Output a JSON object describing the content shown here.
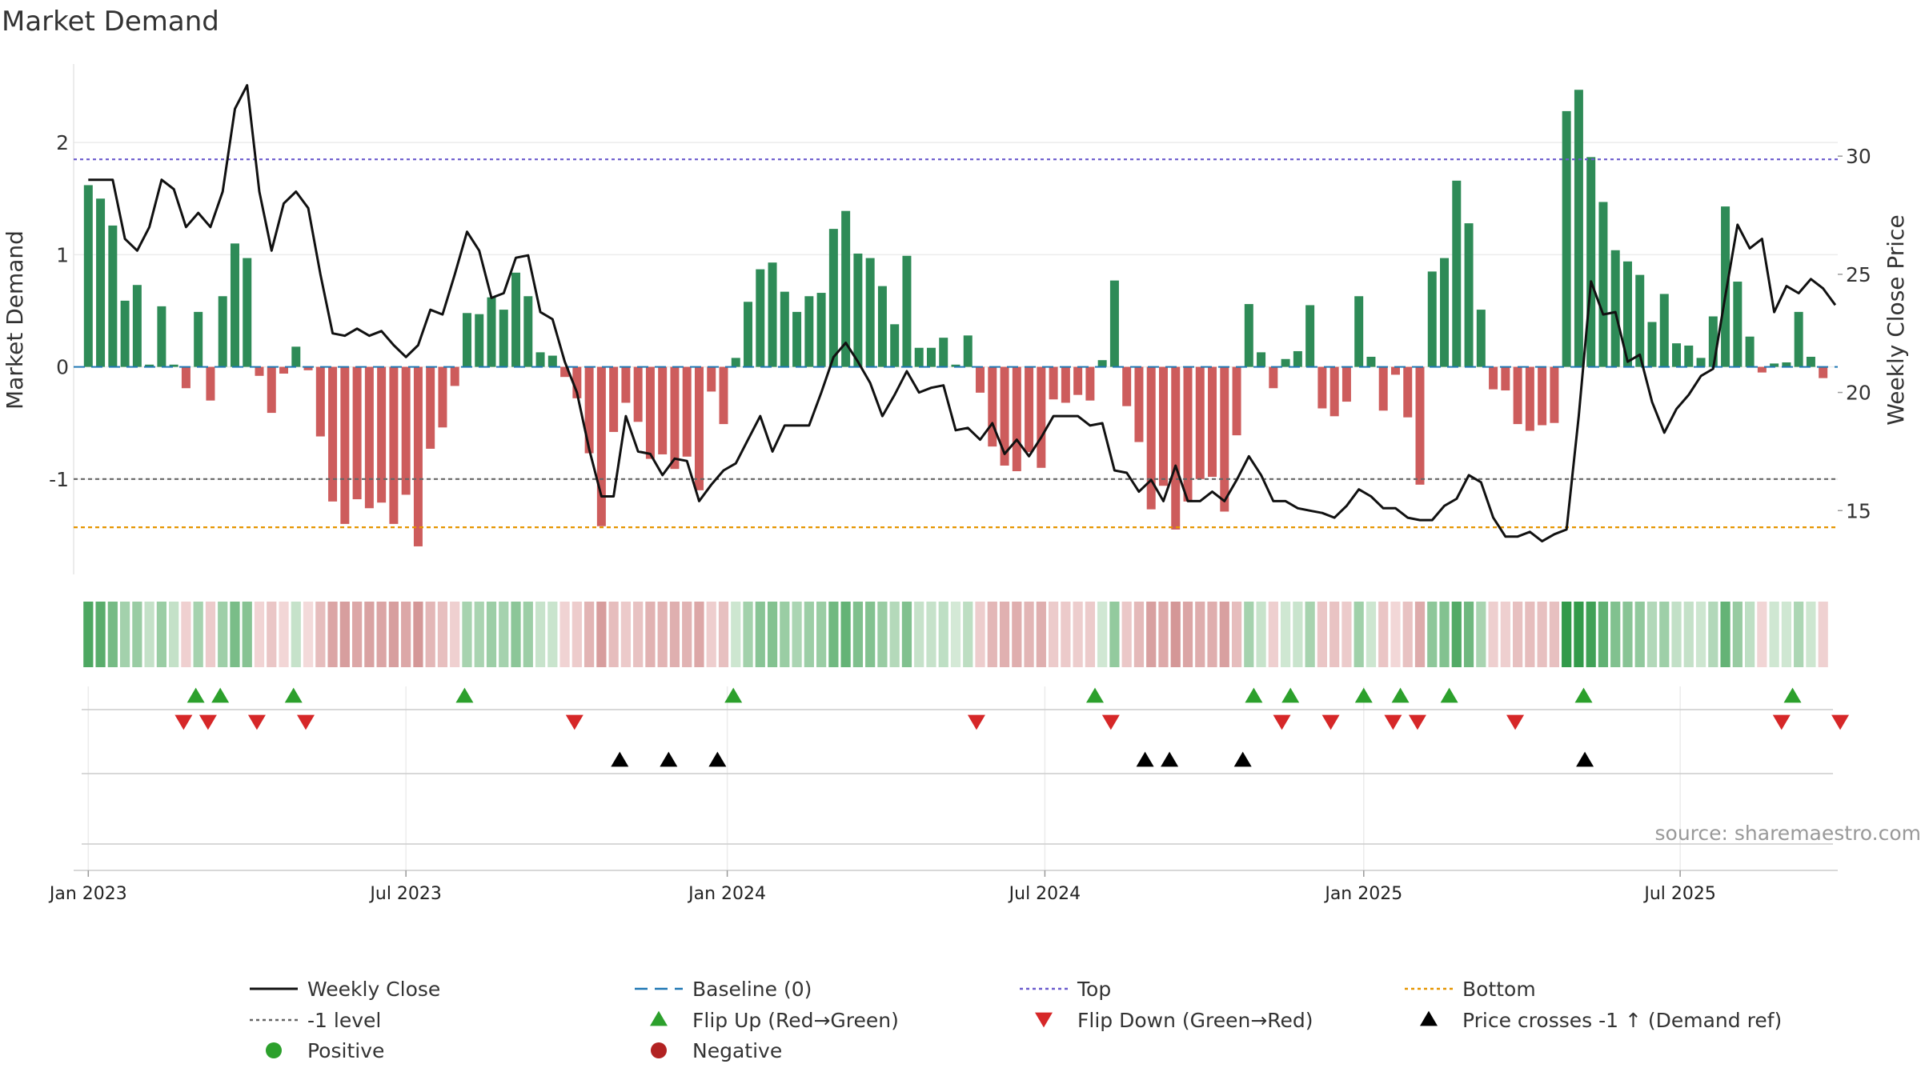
{
  "chart_data": {
    "type": "bar+line",
    "title": "Market Demand",
    "ylabel_left": "Market Demand",
    "ylabel_right": "Weekly Close Price",
    "source": "source: sharemaestro.com",
    "colors": {
      "positive": "#2e8b57",
      "negative": "#cd5c5c",
      "price": "#111111",
      "baseline": "#1f77b4",
      "top": "#6a5acd",
      "bottom": "#e69500",
      "neg1": "#666666",
      "flip_up": "#2ca02c",
      "flip_down": "#d62728",
      "cross": "#000000",
      "pos_dot": "#2ca02c",
      "neg_dot": "#b22222"
    },
    "x_start": "2023-01-02",
    "x_ticks": [
      {
        "label": "Jan 2023",
        "week": 0
      },
      {
        "label": "Jul 2023",
        "week": 26
      },
      {
        "label": "Jan 2024",
        "week": 52.3
      },
      {
        "label": "Jul 2024",
        "week": 78.3
      },
      {
        "label": "Jan 2025",
        "week": 104.4
      },
      {
        "label": "Jul 2025",
        "week": 130.3
      }
    ],
    "xlim_weeks": [
      -1.2,
      143.2
    ],
    "left_axis": {
      "ylim": [
        -1.85,
        2.7
      ],
      "ticks": [
        -1,
        0,
        1,
        2
      ]
    },
    "right_axis": {
      "ylim": [
        12.3,
        33.9
      ],
      "ticks": [
        15,
        20,
        25,
        30
      ]
    },
    "reference_lines": {
      "baseline": 0,
      "top": 1.85,
      "minus_one": -1,
      "bottom": -1.43
    },
    "demand": [
      1.62,
      1.5,
      1.26,
      0.59,
      0.73,
      0.02,
      0.54,
      0.02,
      -0.19,
      0.49,
      -0.3,
      0.63,
      1.1,
      0.97,
      -0.08,
      -0.41,
      -0.06,
      0.18,
      -0.03,
      -0.62,
      -1.2,
      -1.4,
      -1.18,
      -1.26,
      -1.21,
      -1.4,
      -1.14,
      -1.6,
      -0.73,
      -0.54,
      -0.17,
      0.48,
      0.47,
      0.62,
      0.51,
      0.84,
      0.63,
      0.13,
      0.1,
      -0.09,
      -0.28,
      -0.77,
      -1.42,
      -0.58,
      -0.32,
      -0.49,
      -0.82,
      -0.78,
      -0.91,
      -0.8,
      -1.1,
      -0.22,
      -0.51,
      0.08,
      0.58,
      0.87,
      0.93,
      0.67,
      0.49,
      0.63,
      0.66,
      1.23,
      1.39,
      1.01,
      0.97,
      0.72,
      0.38,
      0.99,
      0.17,
      0.17,
      0.26,
      0.02,
      0.28,
      -0.23,
      -0.71,
      -0.88,
      -0.93,
      -0.76,
      -0.9,
      -0.29,
      -0.32,
      -0.25,
      -0.3,
      0.06,
      0.77,
      -0.35,
      -0.67,
      -1.27,
      -1.06,
      -1.45,
      -1.2,
      -1.0,
      -0.98,
      -1.29,
      -0.61,
      0.56,
      0.13,
      -0.19,
      0.07,
      0.14,
      0.55,
      -0.37,
      -0.44,
      -0.31,
      0.63,
      0.09,
      -0.39,
      -0.07,
      -0.45,
      -1.05,
      0.85,
      0.97,
      1.66,
      1.28,
      0.51,
      -0.2,
      -0.21,
      -0.51,
      -0.57,
      -0.52,
      -0.5,
      2.28,
      2.47,
      1.87,
      1.47,
      1.04,
      0.94,
      0.82,
      0.4,
      0.65,
      0.21,
      0.19,
      0.08,
      0.45,
      1.43,
      0.76,
      0.27,
      -0.05,
      0.03,
      0.04,
      0.49,
      0.09,
      -0.1
    ],
    "price": [
      29,
      29,
      29,
      26.5,
      26,
      27,
      29,
      28.6,
      27,
      27.6,
      27,
      28.5,
      32,
      33,
      28.5,
      26,
      28,
      28.5,
      27.8,
      25,
      22.5,
      22.4,
      22.7,
      22.4,
      22.6,
      22,
      21.5,
      22,
      23.5,
      23.3,
      25,
      26.8,
      26,
      24,
      24.2,
      25.7,
      25.8,
      23.4,
      23.1,
      21.3,
      20,
      17.6,
      15.6,
      15.6,
      19,
      17.5,
      17.4,
      16.5,
      17.2,
      17.1,
      15.4,
      16.1,
      16.7,
      17,
      18,
      19,
      17.5,
      18.6,
      18.6,
      18.6,
      20,
      21.5,
      22.1,
      21.3,
      20.4,
      19,
      19.9,
      20.9,
      20,
      20.2,
      20.3,
      18.4,
      18.5,
      18,
      18.7,
      17.4,
      18,
      17.3,
      18.1,
      19,
      19,
      19,
      18.6,
      18.7,
      16.7,
      16.6,
      15.8,
      16.3,
      15.4,
      16.9,
      15.4,
      15.4,
      15.8,
      15.4,
      16.3,
      17.3,
      16.5,
      15.4,
      15.4,
      15.1,
      15,
      14.9,
      14.7,
      15.2,
      15.9,
      15.6,
      15.1,
      15.1,
      14.7,
      14.6,
      14.6,
      15.2,
      15.5,
      16.5,
      16.2,
      14.7,
      13.9,
      13.9,
      14.1,
      13.7,
      14,
      14.2,
      19,
      24.7,
      23.3,
      23.4,
      21.3,
      21.6,
      19.6,
      18.3,
      19.3,
      19.9,
      20.7,
      21,
      24.1,
      27.1,
      26.1,
      26.5,
      23.4,
      24.5,
      24.2,
      24.8,
      24.4,
      23.7
    ],
    "flip_up_weeks": [
      8.8,
      10.8,
      16.8,
      30.8,
      52.8,
      82.4,
      95.4,
      98.4,
      104.4,
      107.4,
      111.4,
      122.4,
      139.5
    ],
    "flip_down_weeks": [
      7.8,
      9.8,
      13.8,
      17.8,
      39.8,
      72.7,
      83.7,
      97.7,
      101.7,
      106.8,
      108.8,
      116.8,
      138.6,
      143.4
    ],
    "cross_weeks": [
      43.5,
      47.5,
      51.5,
      86.5,
      88.5,
      94.5,
      122.5
    ],
    "strip_fills": [
      0.85,
      0.78,
      0.62,
      0.37,
      0.43,
      0.19,
      0.42,
      0.19,
      0.15,
      0.36,
      0.2,
      0.4,
      0.6,
      0.53,
      0.11,
      0.24,
      0.09,
      0.18,
      0.06,
      0.33,
      0.55,
      0.62,
      0.53,
      0.58,
      0.55,
      0.62,
      0.52,
      0.68,
      0.38,
      0.31,
      0.15,
      0.35,
      0.34,
      0.41,
      0.36,
      0.5,
      0.41,
      0.17,
      0.16,
      0.12,
      0.19,
      0.41,
      0.63,
      0.33,
      0.21,
      0.28,
      0.43,
      0.41,
      0.46,
      0.42,
      0.53,
      0.17,
      0.3,
      0.14,
      0.38,
      0.52,
      0.55,
      0.42,
      0.33,
      0.41,
      0.42,
      0.65,
      0.72,
      0.57,
      0.55,
      0.43,
      0.28,
      0.56,
      0.18,
      0.18,
      0.22,
      0.1,
      0.23,
      0.18,
      0.38,
      0.45,
      0.47,
      0.4,
      0.46,
      0.2,
      0.21,
      0.18,
      0.2,
      0.12,
      0.46,
      0.22,
      0.36,
      0.6,
      0.51,
      0.68,
      0.55,
      0.48,
      0.47,
      0.6,
      0.33,
      0.36,
      0.17,
      0.16,
      0.13,
      0.16,
      0.35,
      0.24,
      0.27,
      0.2,
      0.39,
      0.14,
      0.25,
      0.08,
      0.28,
      0.5,
      0.49,
      0.55,
      0.82,
      0.66,
      0.34,
      0.16,
      0.16,
      0.3,
      0.33,
      0.3,
      0.3,
      1.0,
      1.0,
      0.92,
      0.74,
      0.56,
      0.52,
      0.47,
      0.29,
      0.4,
      0.2,
      0.19,
      0.14,
      0.29,
      0.72,
      0.44,
      0.22,
      0.1,
      0.13,
      0.13,
      0.32,
      0.14,
      0.14
    ],
    "legend": [
      {
        "label": "Weekly Close",
        "kind": "line",
        "color": "#111111"
      },
      {
        "label": "Baseline (0)",
        "kind": "dash",
        "color": "#1f77b4"
      },
      {
        "label": "Top",
        "kind": "dot",
        "color": "#6a5acd"
      },
      {
        "label": "Bottom",
        "kind": "dot",
        "color": "#e69500"
      },
      {
        "label": "-1 level",
        "kind": "dot",
        "color": "#666666"
      },
      {
        "label": "Flip Up (Red→Green)",
        "kind": "tri-up",
        "color": "#2ca02c"
      },
      {
        "label": "Flip Down (Green→Red)",
        "kind": "tri-down",
        "color": "#d62728"
      },
      {
        "label": "Price crosses -1 ↑ (Demand ref)",
        "kind": "tri-up",
        "color": "#000000"
      },
      {
        "label": "Positive",
        "kind": "circle",
        "color": "#2ca02c"
      },
      {
        "label": "Negative",
        "kind": "circle",
        "color": "#b22222"
      }
    ]
  }
}
